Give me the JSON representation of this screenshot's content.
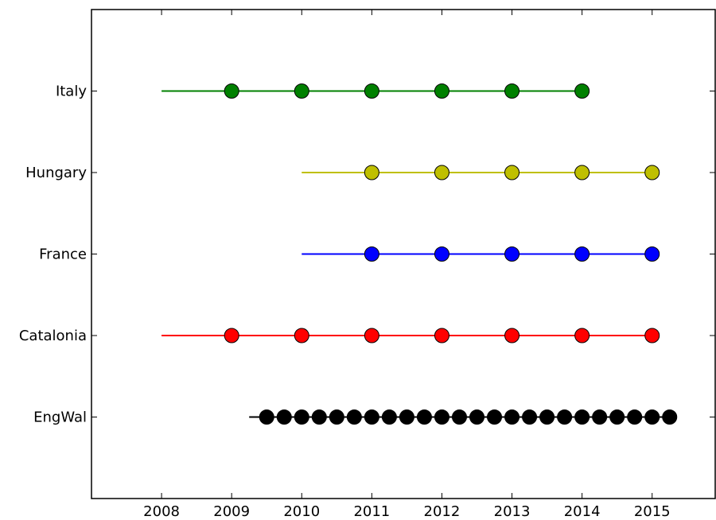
{
  "chart_data": {
    "type": "scatter",
    "title": "",
    "xlabel": "",
    "ylabel": "",
    "xlim": [
      2007.0,
      2015.9
    ],
    "ylim": [
      -1.0,
      5.0
    ],
    "grid": false,
    "xticks": [
      2008,
      2009,
      2010,
      2011,
      2012,
      2013,
      2014,
      2015
    ],
    "xtick_labels": [
      "2008",
      "2009",
      "2010",
      "2011",
      "2012",
      "2013",
      "2014",
      "2015"
    ],
    "categories": [
      "EngWal",
      "Catalonia",
      "France",
      "Hungary",
      "Italy"
    ],
    "series": [
      {
        "name": "EngWal",
        "color": "#000000",
        "line_x": [
          2009.25,
          2015.25
        ],
        "points": [
          2009.5,
          2009.75,
          2010.0,
          2010.25,
          2010.5,
          2010.75,
          2011.0,
          2011.25,
          2011.5,
          2011.75,
          2012.0,
          2012.25,
          2012.5,
          2012.75,
          2013.0,
          2013.25,
          2013.5,
          2013.75,
          2014.0,
          2014.25,
          2014.5,
          2014.75,
          2015.0,
          2015.25
        ]
      },
      {
        "name": "Catalonia",
        "color": "#ff0000",
        "line_x": [
          2008.0,
          2015.0
        ],
        "points": [
          2009,
          2010,
          2011,
          2012,
          2013,
          2014,
          2015
        ]
      },
      {
        "name": "France",
        "color": "#0000ff",
        "line_x": [
          2010.0,
          2015.0
        ],
        "points": [
          2011,
          2012,
          2013,
          2014,
          2015
        ]
      },
      {
        "name": "Hungary",
        "color": "#bfbf00",
        "line_x": [
          2010.0,
          2015.0
        ],
        "points": [
          2011,
          2012,
          2013,
          2014,
          2015
        ]
      },
      {
        "name": "Italy",
        "color": "#008000",
        "line_x": [
          2008.0,
          2014.0
        ],
        "points": [
          2009,
          2010,
          2011,
          2012,
          2013,
          2014
        ]
      }
    ]
  }
}
